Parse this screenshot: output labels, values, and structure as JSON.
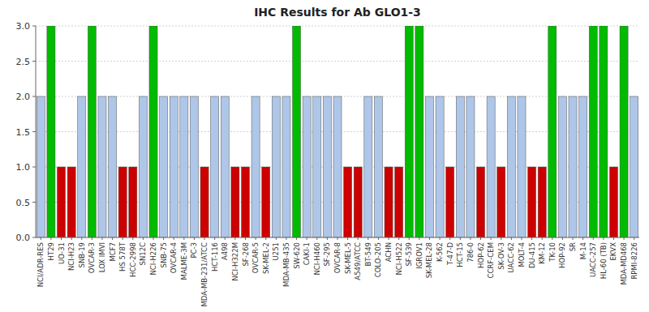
{
  "chart_data": {
    "type": "bar",
    "title": "IHC Results for Ab GLO1-3",
    "categories": [
      "NCI/ADR-RES",
      "HT29",
      "UO-31",
      "NCI-H23",
      "SNB-19",
      "OVCAR-3",
      "LOX IMVI",
      "MCF7",
      "HS 578T",
      "HCC-2998",
      "SN12C",
      "NCI-H226",
      "SNB-75",
      "OVCAR-4",
      "MALME-3M",
      "PC-3",
      "MDA-MB-231/ATCC",
      "HCT-116",
      "A498",
      "NCI-H322M",
      "SF-268",
      "OVCAR-5",
      "SK-MEL-2",
      "U251",
      "MDA-MB-435",
      "SW-620",
      "CAKI-1",
      "NCI-H460",
      "SF-295",
      "OVCAR-8",
      "SK-MEL-5",
      "A549/ATCC",
      "BT-549",
      "COLO-205",
      "ACHN",
      "NCI-H522",
      "SF-539",
      "IGROV1",
      "SK-MEL-28",
      "K-562",
      "T-47-D",
      "HCT-15",
      "786-0",
      "HOP-62",
      "CCRF-CEM",
      "SK-OV-3",
      "UACC-62",
      "MOLT-4",
      "DU-415",
      "KM-12",
      "TK-10",
      "HOP-92",
      "SR",
      "M-14",
      "UACC-257",
      "HL-60 (TB)",
      "EKVX",
      "MDA-MD468",
      "RPMI-8226"
    ],
    "values": [
      2,
      3,
      1,
      1,
      2,
      3,
      2,
      2,
      1,
      1,
      2,
      3,
      2,
      2,
      2,
      2,
      1,
      2,
      2,
      1,
      1,
      2,
      1,
      2,
      2,
      3,
      2,
      2,
      2,
      2,
      1,
      1,
      2,
      2,
      1,
      1,
      3,
      3,
      2,
      2,
      1,
      2,
      2,
      1,
      2,
      1,
      2,
      2,
      1,
      1,
      3,
      2,
      2,
      2,
      3,
      3,
      1,
      3,
      2
    ],
    "colors": [
      "#aec6e8",
      "#00bb00",
      "#cc0000",
      "#cc0000",
      "#aec6e8",
      "#00bb00",
      "#aec6e8",
      "#aec6e8",
      "#cc0000",
      "#cc0000",
      "#aec6e8",
      "#00bb00",
      "#aec6e8",
      "#aec6e8",
      "#aec6e8",
      "#aec6e8",
      "#cc0000",
      "#aec6e8",
      "#aec6e8",
      "#cc0000",
      "#cc0000",
      "#aec6e8",
      "#cc0000",
      "#aec6e8",
      "#aec6e8",
      "#00bb00",
      "#aec6e8",
      "#aec6e8",
      "#aec6e8",
      "#aec6e8",
      "#cc0000",
      "#cc0000",
      "#aec6e8",
      "#aec6e8",
      "#cc0000",
      "#cc0000",
      "#00bb00",
      "#00bb00",
      "#aec6e8",
      "#aec6e8",
      "#cc0000",
      "#aec6e8",
      "#aec6e8",
      "#cc0000",
      "#aec6e8",
      "#cc0000",
      "#aec6e8",
      "#aec6e8",
      "#cc0000",
      "#cc0000",
      "#00bb00",
      "#aec6e8",
      "#aec6e8",
      "#aec6e8",
      "#00bb00",
      "#00bb00",
      "#cc0000",
      "#00bb00",
      "#aec6e8"
    ],
    "ylim": [
      0,
      3.0
    ],
    "yticks": [
      {
        "value": 0.0,
        "label": "0.0"
      },
      0.5,
      {
        "value": 1.0,
        "label": "1.0"
      },
      1.5,
      {
        "value": 2.0,
        "label": "2.0"
      },
      2.5,
      {
        "value": 3.0,
        "label": "3.0"
      }
    ],
    "grid": true
  }
}
